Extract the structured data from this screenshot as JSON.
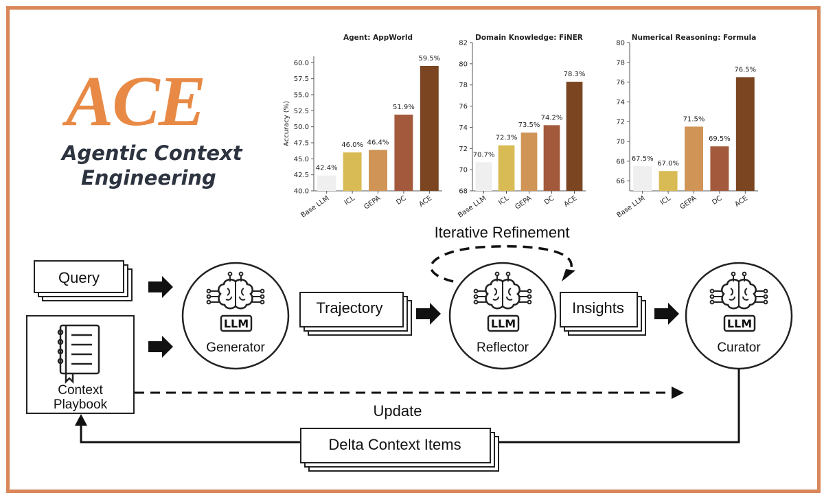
{
  "logo": {
    "title": "ACE",
    "subtitle_line1": "Agentic Context",
    "subtitle_line2": "Engineering"
  },
  "colors": {
    "accent": "#e88a45",
    "border": "#d9875a",
    "text_dark": "#2d3440"
  },
  "diagram": {
    "iterative_label": "Iterative Refinement",
    "update_label": "Update",
    "query": "Query",
    "context_playbook_line1": "Context",
    "context_playbook_line2": "Playbook",
    "trajectory": "Trajectory",
    "insights": "Insights",
    "delta": "Delta Context Items",
    "llm": "LLM",
    "generator": "Generator",
    "reflector": "Reflector",
    "curator": "Curator",
    "icons": [
      "brain-llm-icon",
      "notebook-icon",
      "arrow-right-icon"
    ]
  },
  "chart_data": [
    {
      "type": "bar",
      "title": "Agent: AppWorld",
      "ylabel": "Accuracy (%)",
      "categories": [
        "Base LLM",
        "ICL",
        "GEPA",
        "DC",
        "ACE"
      ],
      "values": [
        42.4,
        46.0,
        46.4,
        51.9,
        59.5
      ],
      "labels": [
        "42.4%",
        "46.0%",
        "46.4%",
        "51.9%",
        "59.5%"
      ],
      "ylim": [
        40,
        61
      ],
      "yticks": [
        40.0,
        42.5,
        45.0,
        47.5,
        50.0,
        52.5,
        55.0,
        57.5,
        60.0
      ],
      "ytick_labels": [
        "40.0",
        "42.5",
        "45.0",
        "47.5",
        "50.0",
        "52.5",
        "55.0",
        "57.5",
        "60.0"
      ],
      "colors": [
        "#efefef",
        "#d8bb55",
        "#cf9456",
        "#a35a3c",
        "#7a4520"
      ]
    },
    {
      "type": "bar",
      "title": "Domain Knowledge: FiNER",
      "ylabel": "",
      "categories": [
        "Base LLM",
        "ICL",
        "GEPA",
        "DC",
        "ACE"
      ],
      "values": [
        70.7,
        72.3,
        73.5,
        74.2,
        78.3
      ],
      "labels": [
        "70.7%",
        "72.3%",
        "73.5%",
        "74.2%",
        "78.3%"
      ],
      "ylim": [
        68,
        82
      ],
      "yticks": [
        68,
        70,
        72,
        74,
        76,
        78,
        80,
        82
      ],
      "ytick_labels": [
        "68",
        "70",
        "72",
        "74",
        "76",
        "78",
        "80",
        "82"
      ],
      "colors": [
        "#efefef",
        "#d8bb55",
        "#cf9456",
        "#a35a3c",
        "#7a4520"
      ]
    },
    {
      "type": "bar",
      "title": "Numerical Reasoning: Formula",
      "ylabel": "",
      "categories": [
        "Base LLM",
        "ICL",
        "GEPA",
        "DC",
        "ACE"
      ],
      "values": [
        67.5,
        67.0,
        71.5,
        69.5,
        76.5
      ],
      "labels": [
        "67.5%",
        "67.0%",
        "71.5%",
        "69.5%",
        "76.5%"
      ],
      "ylim": [
        65,
        80
      ],
      "yticks": [
        66,
        68,
        70,
        72,
        74,
        76,
        78,
        80
      ],
      "ytick_labels": [
        "66",
        "68",
        "70",
        "72",
        "74",
        "76",
        "78",
        "80"
      ],
      "colors": [
        "#efefef",
        "#d8bb55",
        "#cf9456",
        "#a35a3c",
        "#7a4520"
      ]
    }
  ]
}
